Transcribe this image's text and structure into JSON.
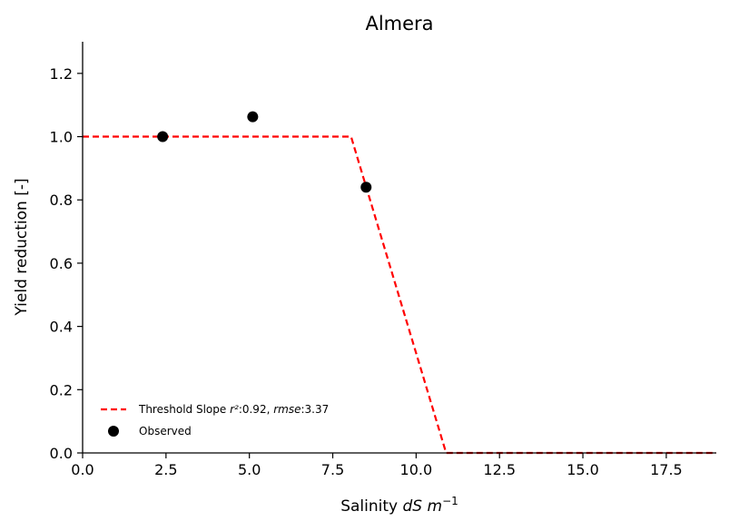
{
  "chart_data": {
    "type": "line",
    "title": "Almera",
    "xlabel": "Salinity ",
    "xlabel_math": "dS m",
    "xlabel_sup": "−1",
    "ylabel": "Yield reduction [-]",
    "xlim": [
      0,
      19
    ],
    "ylim": [
      0,
      1.3
    ],
    "xticks": [
      0,
      2.5,
      5,
      7.5,
      10,
      12.5,
      15,
      17.5
    ],
    "xtick_labels": [
      "0.0",
      "2.5",
      "5.0",
      "7.5",
      "10.0",
      "12.5",
      "15.0",
      "17.5"
    ],
    "yticks": [
      0,
      0.2,
      0.4,
      0.6,
      0.8,
      1.0,
      1.2
    ],
    "ytick_labels": [
      "0.0",
      "0.2",
      "0.4",
      "0.6",
      "0.8",
      "1.0",
      "1.2"
    ],
    "grid": false,
    "legend_position": "lower-left",
    "series": [
      {
        "name": "Threshold Slope",
        "legend_text": "Threshold Slope ",
        "legend_r2_symbol": "r²",
        "legend_r2_value": ":0.92, ",
        "legend_rmse_symbol": "rmse",
        "legend_rmse_value": ":3.37",
        "style": "dashed",
        "color": "#ff0000",
        "points": [
          [
            0,
            1.0
          ],
          [
            8.05,
            1.0
          ],
          [
            10.9,
            0.0
          ],
          [
            19,
            0.0
          ]
        ]
      },
      {
        "name": "Observed",
        "legend_text": "Observed",
        "style": "markers",
        "color": "#000000",
        "points": [
          [
            2.4,
            1.0
          ],
          [
            5.1,
            1.063
          ],
          [
            8.5,
            0.84
          ]
        ]
      }
    ]
  }
}
